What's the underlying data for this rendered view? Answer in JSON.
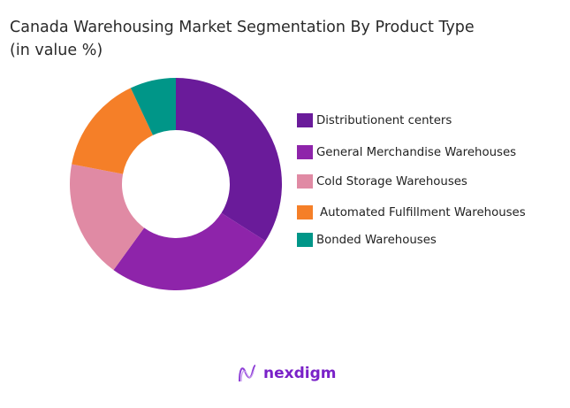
{
  "chart_data": {
    "type": "pie",
    "title": "Canada Warehousing Market Segmentation By Product Type (in value %)",
    "title_lines": [
      "Canada Warehousing Market Segmentation By Product Type",
      "(in value %)"
    ],
    "donut": true,
    "legend_position": "right",
    "categories": [
      "Distributionent  centers",
      "General Merchandise Warehouses",
      "Cold Storage Warehouses",
      "Automated Fulfillment Warehouses",
      "Bonded Warehouses"
    ],
    "values": [
      34,
      26,
      18,
      15,
      7
    ],
    "colors": [
      "#6a1b9a",
      "#8e24aa",
      "#e08aa4",
      "#f57f28",
      "#009688"
    ]
  },
  "brand": {
    "name": "nexdigm",
    "color": "#7a22c8"
  }
}
